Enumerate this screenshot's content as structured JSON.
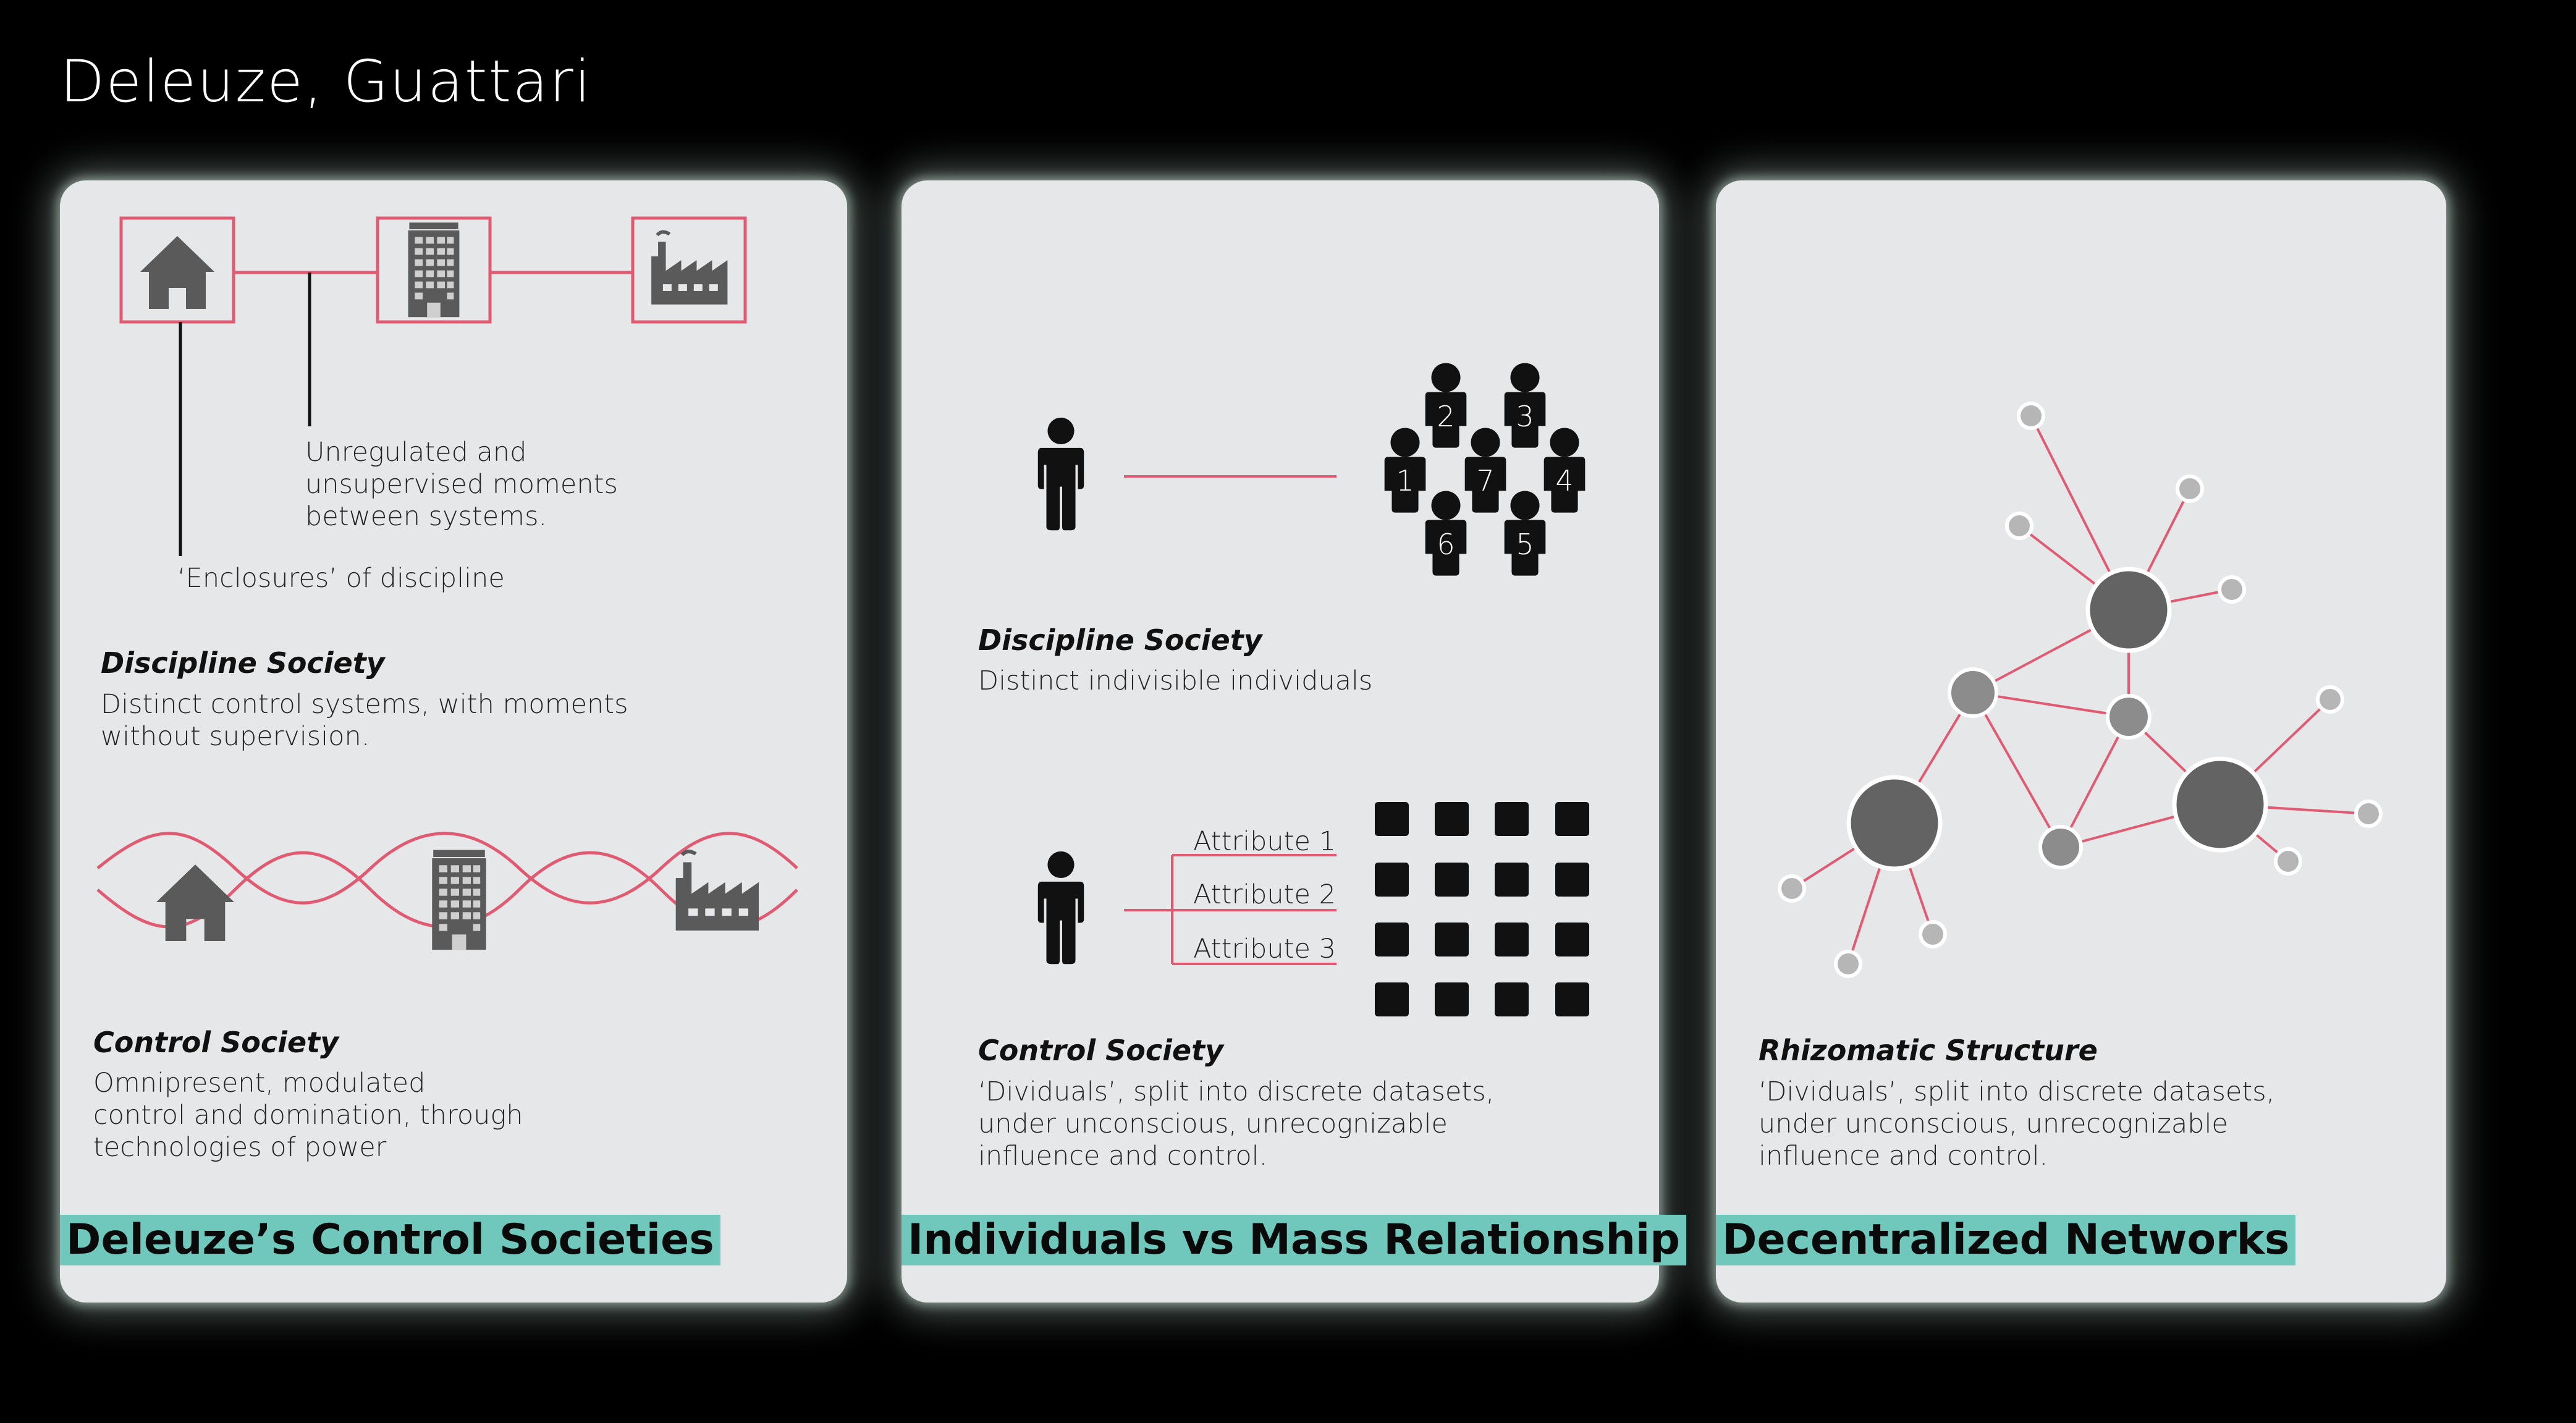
{
  "page_title": "Deleuze, Guattari",
  "colors": {
    "accent_line": "#e05a72",
    "banner": "#6fc8bb",
    "card": "#e6e7e9",
    "icon_gray": "#5a5a5a"
  },
  "card1": {
    "annotation_gaps": "Unregulated and\nunsupervised moments\nbetween systems.",
    "annotation_enclosures": "‘Enclosures’ of discipline",
    "discipline_heading": "Discipline Society",
    "discipline_text": "Distinct control systems, with moments\nwithout supervision.",
    "control_heading": "Control Society",
    "control_text": "Omnipresent, modulated\ncontrol and domination, through\ntechnologies of power",
    "banner": "Deleuze’s Control Societies",
    "icons": [
      "house-icon",
      "office-building-icon",
      "factory-icon"
    ]
  },
  "card2": {
    "crowd_numbers": [
      "1",
      "2",
      "3",
      "4",
      "5",
      "6",
      "7"
    ],
    "discipline_heading": "Discipline Society",
    "discipline_text": "Distinct indivisible individuals",
    "attributes": [
      "Attribute 1",
      "Attribute 2",
      "Attribute 3"
    ],
    "control_heading": "Control Society",
    "control_text": "‘Dividuals’, split into discrete datasets,\nunder unconscious, unrecognizable\ninfluence and control.",
    "banner": "Individuals vs Mass Relationship"
  },
  "card3": {
    "heading": "Rhizomatic Structure",
    "text": "‘Dividuals’, split into discrete datasets,\nunder unconscious, unrecognizable\ninfluence and control.",
    "banner": "Decentralized Networks"
  }
}
